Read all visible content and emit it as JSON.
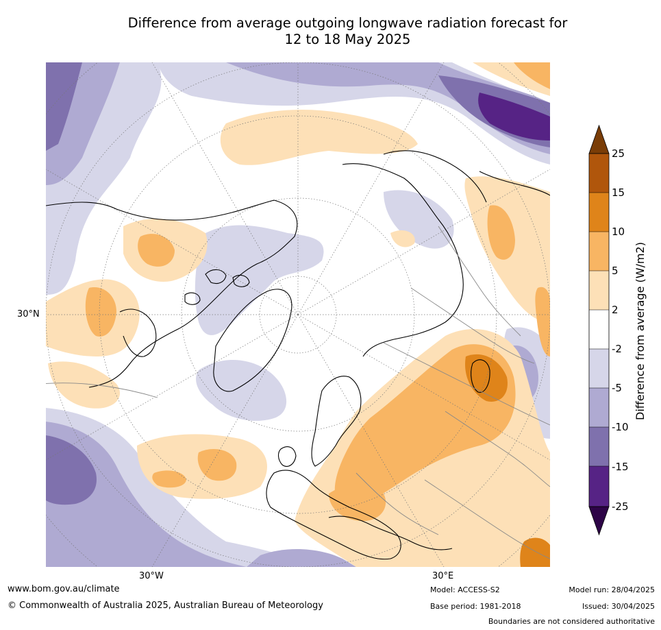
{
  "title": {
    "line1": "Difference from average outgoing longwave radiation forecast for",
    "line2": "12 to 18 May 2025"
  },
  "map": {
    "projection": "north-polar-stereographic",
    "lat_label": "30°N",
    "lon_labels": [
      "30°W",
      "30°E"
    ]
  },
  "colorbar": {
    "title": "Difference from average (W/m2)",
    "ticks": [
      "25",
      "15",
      "10",
      "5",
      "2",
      "-2",
      "-5",
      "-10",
      "-15",
      "-25"
    ],
    "colors": [
      "#7a3d07",
      "#b0560c",
      "#df841a",
      "#f8b563",
      "#fde0b7",
      "#ffffff",
      "#d6d6e9",
      "#afaad2",
      "#7f71ad",
      "#562385",
      "#2d0447"
    ],
    "extend": "both"
  },
  "footer": {
    "url": "www.bom.gov.au/climate",
    "copyright": "© Commonwealth of Australia 2025, Australian Bureau of Meteorology",
    "model": "Model: ACCESS-S2",
    "base_period": "Base period: 1981-2018",
    "model_run": "Model run: 28/04/2025",
    "issued": "Issued: 30/04/2025",
    "disclaimer": "Boundaries are not considered authoritative"
  }
}
